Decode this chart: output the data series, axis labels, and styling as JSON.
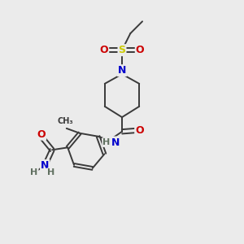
{
  "background_color": "#ebebeb",
  "bond_color": "#3a3a3a",
  "atom_colors": {
    "N": "#0000cc",
    "O": "#cc0000",
    "S": "#cccc00",
    "C": "#3a3a3a",
    "H": "#607060"
  }
}
